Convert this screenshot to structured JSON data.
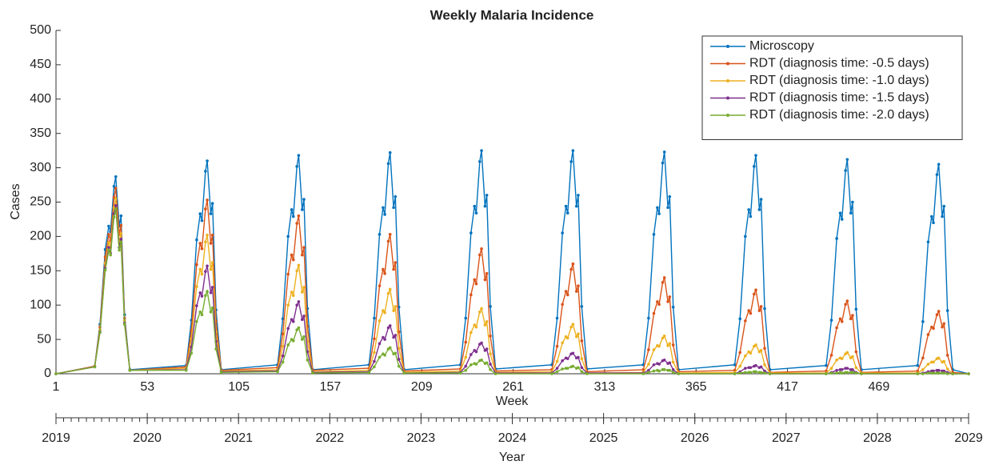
{
  "chart_data": {
    "type": "line",
    "title": "Weekly Malaria Incidence",
    "xlabel": "Week",
    "ylabel": "Cases",
    "x2label": "Year",
    "xlim": [
      1,
      520
    ],
    "xticks": [
      1,
      53,
      105,
      157,
      209,
      261,
      313,
      365,
      417,
      469
    ],
    "ylim": [
      0,
      500
    ],
    "yticks": [
      0,
      50,
      100,
      150,
      200,
      250,
      300,
      350,
      400,
      450,
      500
    ],
    "x2lim": [
      2019,
      2029
    ],
    "x2ticks": [
      2019,
      2020,
      2021,
      2022,
      2023,
      2024,
      2025,
      2026,
      2027,
      2028,
      2029
    ],
    "legend": "northeast",
    "grid": false,
    "x": [
      1,
      23,
      26,
      29,
      31,
      32,
      34,
      35,
      37,
      38,
      40,
      43,
      75,
      78,
      81,
      83,
      84,
      86,
      87,
      89,
      90,
      92,
      95,
      127,
      130,
      133,
      135,
      136,
      138,
      139,
      141,
      142,
      144,
      147,
      179,
      182,
      185,
      187,
      188,
      190,
      191,
      193,
      194,
      196,
      199,
      231,
      234,
      237,
      239,
      240,
      242,
      243,
      245,
      246,
      248,
      251,
      283,
      286,
      289,
      291,
      292,
      294,
      295,
      297,
      298,
      300,
      303,
      335,
      338,
      341,
      343,
      344,
      346,
      347,
      349,
      350,
      352,
      355,
      387,
      390,
      393,
      395,
      396,
      398,
      399,
      401,
      402,
      404,
      407,
      439,
      442,
      445,
      447,
      448,
      450,
      451,
      453,
      454,
      456,
      459,
      491,
      494,
      497,
      499,
      500,
      502,
      503,
      505,
      506,
      508,
      511,
      520
    ],
    "series": [
      {
        "name": "Microscopy",
        "color": "#0072BD",
        "values": [
          0,
          11,
          72,
          181,
          215,
          207,
          273,
          287,
          215,
          230,
          86,
          6,
          12,
          78,
          195,
          233,
          223,
          295,
          310,
          233,
          248,
          93,
          6,
          13,
          80,
          200,
          239,
          229,
          302,
          318,
          239,
          254,
          95,
          6,
          13,
          81,
          203,
          242,
          232,
          306,
          322,
          242,
          258,
          97,
          6,
          13,
          81,
          205,
          244,
          234,
          309,
          325,
          244,
          260,
          98,
          7,
          13,
          81,
          205,
          244,
          234,
          309,
          325,
          244,
          260,
          98,
          7,
          13,
          81,
          203,
          242,
          233,
          307,
          323,
          242,
          258,
          97,
          6,
          13,
          80,
          200,
          239,
          229,
          302,
          318,
          239,
          254,
          95,
          6,
          12,
          78,
          197,
          234,
          225,
          296,
          312,
          234,
          250,
          94,
          6,
          12,
          76,
          192,
          229,
          220,
          290,
          305,
          229,
          244,
          92,
          6,
          0
        ]
      },
      {
        "name": "RDT (diagnosis time: -0.5 days)",
        "color": "#D95319",
        "values": [
          0,
          11,
          68,
          170,
          203,
          194,
          257,
          270,
          203,
          216,
          81,
          5,
          10,
          63,
          159,
          190,
          182,
          240,
          253,
          190,
          202,
          76,
          5,
          9,
          58,
          145,
          173,
          166,
          219,
          230,
          173,
          184,
          69,
          5,
          8,
          51,
          128,
          152,
          146,
          193,
          203,
          152,
          162,
          61,
          4,
          7,
          46,
          115,
          137,
          131,
          173,
          182,
          137,
          146,
          55,
          4,
          6,
          40,
          101,
          120,
          115,
          152,
          160,
          120,
          128,
          48,
          3,
          6,
          35,
          88,
          105,
          101,
          133,
          140,
          105,
          112,
          42,
          3,
          5,
          31,
          77,
          92,
          88,
          116,
          122,
          92,
          98,
          37,
          2,
          4,
          27,
          67,
          80,
          76,
          101,
          106,
          80,
          85,
          32,
          2,
          4,
          23,
          57,
          68,
          66,
          86,
          91,
          68,
          73,
          27,
          2,
          0
        ]
      },
      {
        "name": "RDT (diagnosis time: -1.0 days)",
        "color": "#EDB120",
        "values": [
          0,
          10,
          64,
          161,
          191,
          184,
          242,
          255,
          191,
          204,
          77,
          5,
          8,
          51,
          127,
          152,
          145,
          192,
          202,
          152,
          162,
          61,
          4,
          6,
          40,
          100,
          119,
          114,
          150,
          158,
          119,
          126,
          47,
          3,
          5,
          31,
          77,
          92,
          89,
          117,
          123,
          92,
          98,
          37,
          2,
          4,
          24,
          60,
          71,
          68,
          90,
          95,
          71,
          76,
          29,
          2,
          3,
          18,
          45,
          54,
          52,
          68,
          72,
          54,
          58,
          22,
          1,
          2,
          14,
          35,
          41,
          40,
          52,
          55,
          41,
          44,
          17,
          1,
          2,
          11,
          26,
          32,
          30,
          40,
          42,
          32,
          34,
          13,
          1,
          1,
          8,
          20,
          23,
          22,
          29,
          31,
          23,
          25,
          9,
          1,
          1,
          6,
          14,
          17,
          17,
          22,
          23,
          17,
          18,
          7,
          0,
          0
        ]
      },
      {
        "name": "RDT (diagnosis time: -1.5 days)",
        "color": "#7E2F8E",
        "values": [
          0,
          10,
          61,
          154,
          184,
          176,
          233,
          245,
          184,
          196,
          74,
          5,
          6,
          39,
          99,
          118,
          113,
          149,
          157,
          118,
          126,
          47,
          3,
          4,
          26,
          66,
          79,
          76,
          100,
          105,
          79,
          84,
          32,
          2,
          3,
          18,
          44,
          53,
          50,
          67,
          70,
          53,
          56,
          21,
          1,
          2,
          11,
          28,
          34,
          32,
          43,
          45,
          34,
          36,
          14,
          1,
          1,
          8,
          19,
          23,
          22,
          29,
          30,
          23,
          24,
          9,
          1,
          1,
          5,
          13,
          15,
          14,
          19,
          20,
          15,
          16,
          6,
          0,
          0,
          3,
          8,
          9,
          9,
          11,
          12,
          9,
          10,
          4,
          0,
          0,
          2,
          5,
          6,
          6,
          8,
          8,
          6,
          6,
          2,
          0,
          0,
          1,
          3,
          4,
          4,
          5,
          5,
          4,
          4,
          2,
          0,
          0
        ]
      },
      {
        "name": "RDT (diagnosis time: -2.0 days)",
        "color": "#77AC30",
        "values": [
          0,
          10,
          60,
          151,
          180,
          173,
          228,
          240,
          180,
          192,
          72,
          5,
          5,
          30,
          76,
          90,
          86,
          114,
          120,
          90,
          96,
          36,
          2,
          3,
          17,
          42,
          50,
          48,
          64,
          67,
          50,
          54,
          20,
          1,
          2,
          10,
          24,
          29,
          27,
          36,
          38,
          29,
          30,
          11,
          1,
          1,
          5,
          13,
          15,
          14,
          19,
          20,
          15,
          16,
          6,
          0,
          0,
          3,
          7,
          8,
          8,
          10,
          11,
          8,
          9,
          3,
          0,
          0,
          2,
          4,
          5,
          4,
          6,
          6,
          5,
          5,
          2,
          0,
          0,
          1,
          2,
          2,
          2,
          3,
          3,
          2,
          2,
          1,
          0,
          0,
          1,
          1,
          2,
          1,
          2,
          2,
          2,
          2,
          1,
          0,
          0,
          0,
          1,
          1,
          1,
          1,
          1,
          1,
          1,
          0,
          0,
          0
        ]
      }
    ]
  }
}
